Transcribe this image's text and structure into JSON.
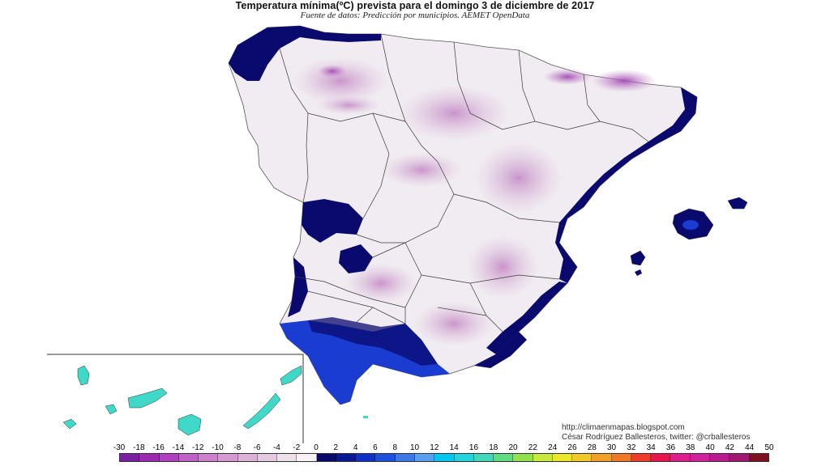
{
  "header": {
    "title": "Temperatura mínima(ºC) prevista para el domingo 3 de diciembre de 2017",
    "subtitle": "Fuente de datos: Predicción por municipios. AEMET OpenData"
  },
  "credits": {
    "blog": "http://climaenmapas.blogspot.com",
    "author": "César Rodríguez Ballesteros, twitter: @crballesteros"
  },
  "legend": {
    "ticks": [
      "-30",
      "-18",
      "-16",
      "-14",
      "-12",
      "-10",
      "-8",
      "-6",
      "-4",
      "-2",
      "0",
      "2",
      "4",
      "6",
      "8",
      "10",
      "12",
      "14",
      "16",
      "18",
      "20",
      "22",
      "24",
      "26",
      "28",
      "30",
      "32",
      "34",
      "36",
      "38",
      "40",
      "42",
      "44",
      "50"
    ],
    "colors": [
      "#7b1fa2",
      "#9c27b0",
      "#b040c0",
      "#c060c8",
      "#cc80cc",
      "#d69ad2",
      "#dcb2d8",
      "#e4cae0",
      "#ece0ea",
      "#f6f2f6",
      "#0a0a6e",
      "#0a1896",
      "#1030c8",
      "#1e50dc",
      "#3c78e6",
      "#5aa0f0",
      "#00c8f0",
      "#20d6dc",
      "#40d8b8",
      "#60dc80",
      "#90e050",
      "#c8e83c",
      "#e8e828",
      "#f0c828",
      "#f0a028",
      "#f07828",
      "#f03c28",
      "#e81450",
      "#e01c8c",
      "#d020a0",
      "#b81c90",
      "#a01870",
      "#801020"
    ]
  },
  "map": {
    "region": "Península Ibérica, Baleares y Canarias",
    "colors": {
      "sea": "#ffffff",
      "cold_coast": "#0a0a6e",
      "warm_coast": "#1a3cd0",
      "mild_land": "#f1ecf2",
      "frost_land": "#dcc1db",
      "deep_frost": "#a651b8",
      "canarias": "#40d8c8",
      "border": "#3a3a3a"
    }
  }
}
